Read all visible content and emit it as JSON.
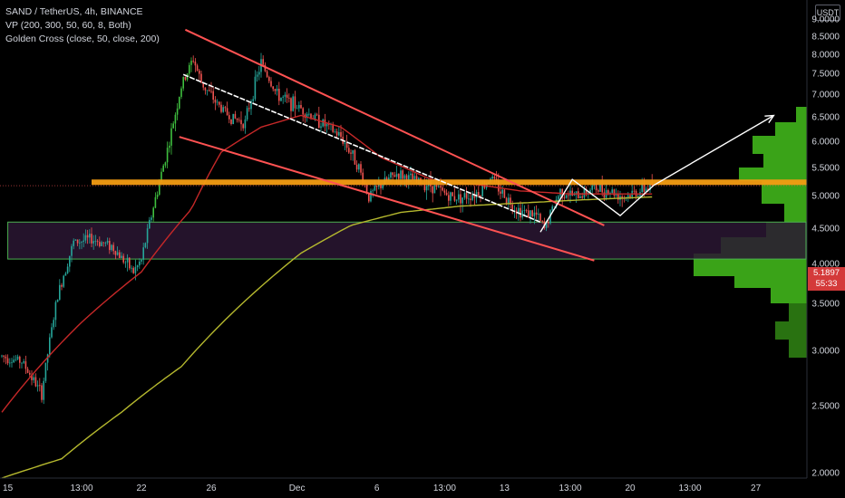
{
  "header": {
    "symbol_line": "SAND / TetherUS, 4h, BINANCE",
    "vp_line": "VP (200, 300, 50, 60, 8, Both)",
    "golden_line": "Golden Cross (close, 50, close, 200)"
  },
  "axis": {
    "currency": "USDT",
    "last_price": "5.1897",
    "countdown": "55:33"
  },
  "colors": {
    "background": "#000000",
    "up": "#26a69a",
    "up_bright": "#3fbf3f",
    "down": "#ef5350",
    "ma50": "#c62828",
    "ma200": "#b5b82e",
    "trend": "#ff5252",
    "resistance": "#f39c12",
    "zone_fill": "#2a1633",
    "zone_border": "#4caf50",
    "projection": "#ffffff",
    "volume_profile": "#3aa318",
    "price_tag": "#d43a3a"
  },
  "chart_data": {
    "type": "candlestick",
    "title": "SAND / TetherUS, 4h, BINANCE",
    "y_scale": "log",
    "ylim": [
      1.97,
      9.6
    ],
    "y_ticks": [
      "9.0000",
      "8.5000",
      "8.0000",
      "7.5000",
      "7.0000",
      "6.5000",
      "6.0000",
      "5.5000",
      "5.0000",
      "4.5000",
      "4.0000",
      "3.5000",
      "3.0000",
      "2.5000",
      "2.0000"
    ],
    "y_tick_values": [
      9.0,
      8.5,
      8.0,
      7.5,
      7.0,
      6.5,
      6.0,
      5.5,
      5.0,
      4.5,
      4.0,
      3.5,
      3.0,
      2.5,
      2.0
    ],
    "x_ticks": [
      "15",
      "13:00",
      "22",
      "26",
      "Dec",
      "6",
      "13:00",
      "13",
      "13:00",
      "20",
      "13:00",
      "27"
    ],
    "x_tick_index": [
      3,
      40,
      70,
      105,
      148,
      188,
      222,
      252,
      285,
      315,
      345,
      378
    ],
    "bar_count": 380,
    "price_path": [
      {
        "i": 0,
        "p": 2.95
      },
      {
        "i": 10,
        "p": 2.9
      },
      {
        "i": 20,
        "p": 2.6
      },
      {
        "i": 28,
        "p": 3.6
      },
      {
        "i": 36,
        "p": 4.3
      },
      {
        "i": 45,
        "p": 4.35
      },
      {
        "i": 55,
        "p": 4.25
      },
      {
        "i": 66,
        "p": 3.9
      },
      {
        "i": 70,
        "p": 4.05
      },
      {
        "i": 78,
        "p": 5.1
      },
      {
        "i": 84,
        "p": 6.0
      },
      {
        "i": 90,
        "p": 7.2
      },
      {
        "i": 96,
        "p": 7.9
      },
      {
        "i": 100,
        "p": 7.3
      },
      {
        "i": 108,
        "p": 6.8
      },
      {
        "i": 115,
        "p": 6.5
      },
      {
        "i": 122,
        "p": 6.4
      },
      {
        "i": 130,
        "p": 7.8
      },
      {
        "i": 138,
        "p": 7.0
      },
      {
        "i": 150,
        "p": 6.7
      },
      {
        "i": 160,
        "p": 6.4
      },
      {
        "i": 170,
        "p": 6.1
      },
      {
        "i": 178,
        "p": 5.6
      },
      {
        "i": 184,
        "p": 5.0
      },
      {
        "i": 190,
        "p": 5.2
      },
      {
        "i": 198,
        "p": 5.4
      },
      {
        "i": 205,
        "p": 5.3
      },
      {
        "i": 215,
        "p": 5.2
      },
      {
        "i": 225,
        "p": 5.0
      },
      {
        "i": 232,
        "p": 5.0
      },
      {
        "i": 240,
        "p": 5.1
      },
      {
        "i": 245,
        "p": 5.35
      },
      {
        "i": 250,
        "p": 5.1
      },
      {
        "i": 258,
        "p": 4.8
      },
      {
        "i": 268,
        "p": 4.7
      },
      {
        "i": 272,
        "p": 4.5
      },
      {
        "i": 280,
        "p": 5.1
      },
      {
        "i": 288,
        "p": 5.0
      },
      {
        "i": 296,
        "p": 5.15
      },
      {
        "i": 305,
        "p": 5.1
      },
      {
        "i": 312,
        "p": 5.0
      },
      {
        "i": 320,
        "p": 5.1
      },
      {
        "i": 326,
        "p": 5.19
      }
    ],
    "ma50_path": [
      {
        "i": 0,
        "p": 2.45
      },
      {
        "i": 40,
        "p": 3.3
      },
      {
        "i": 70,
        "p": 3.9
      },
      {
        "i": 95,
        "p": 4.8
      },
      {
        "i": 110,
        "p": 5.8
      },
      {
        "i": 130,
        "p": 6.3
      },
      {
        "i": 150,
        "p": 6.55
      },
      {
        "i": 170,
        "p": 6.3
      },
      {
        "i": 190,
        "p": 5.7
      },
      {
        "i": 215,
        "p": 5.3
      },
      {
        "i": 240,
        "p": 5.2
      },
      {
        "i": 260,
        "p": 5.1
      },
      {
        "i": 285,
        "p": 5.05
      },
      {
        "i": 305,
        "p": 5.05
      },
      {
        "i": 326,
        "p": 5.05
      }
    ],
    "ma200_path": [
      {
        "i": 0,
        "p": 1.97
      },
      {
        "i": 30,
        "p": 2.1
      },
      {
        "i": 60,
        "p": 2.45
      },
      {
        "i": 90,
        "p": 2.85
      },
      {
        "i": 120,
        "p": 3.5
      },
      {
        "i": 150,
        "p": 4.15
      },
      {
        "i": 175,
        "p": 4.55
      },
      {
        "i": 200,
        "p": 4.75
      },
      {
        "i": 230,
        "p": 4.85
      },
      {
        "i": 260,
        "p": 4.9
      },
      {
        "i": 290,
        "p": 4.95
      },
      {
        "i": 326,
        "p": 5.0
      }
    ],
    "drawings": {
      "wedge_upper": [
        {
          "i": 92,
          "p": 8.7
        },
        {
          "i": 302,
          "p": 4.55
        }
      ],
      "wedge_lower": [
        {
          "i": 89,
          "p": 6.1
        },
        {
          "i": 297,
          "p": 4.05
        }
      ],
      "inner_trend": [
        {
          "i": 91,
          "p": 7.5
        },
        {
          "i": 270,
          "p": 4.6
        }
      ],
      "resistance": {
        "i_from": 45,
        "i_to": 405,
        "p": 5.25
      },
      "zone": {
        "p_top": 4.6,
        "p_bottom": 4.07,
        "i_from": 3,
        "i_to": 405
      },
      "projection": [
        {
          "i": 270,
          "p": 4.45
        },
        {
          "i": 286,
          "p": 5.3
        },
        {
          "i": 310,
          "p": 4.7
        },
        {
          "i": 327,
          "p": 5.2
        },
        {
          "i": 387,
          "p": 6.55
        }
      ]
    }
  }
}
